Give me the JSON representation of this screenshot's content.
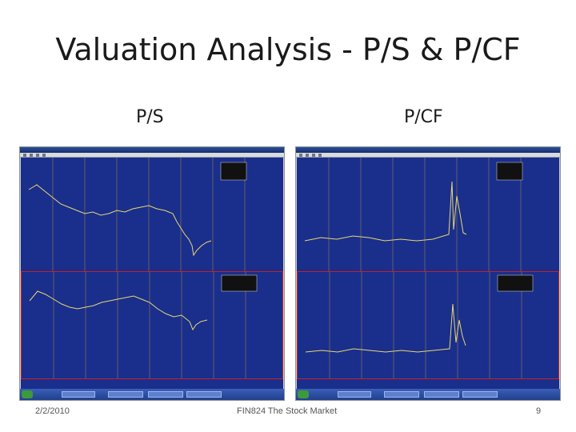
{
  "slide": {
    "title": "Valuation Analysis - P/S & P/CF",
    "left_label": "P/S",
    "right_label": "P/CF"
  },
  "footer": {
    "date": "2/2/2010",
    "course": "FIN824 The Stock Market",
    "page": "9"
  },
  "colors": {
    "chart_bg": "#1a2e8c",
    "line": "#e8d870",
    "grid": "#c8a040",
    "pane_border": "#cc2020",
    "taskbar": "#2a4a9c"
  },
  "icons": {
    "windows_start": "windows-start-icon"
  }
}
